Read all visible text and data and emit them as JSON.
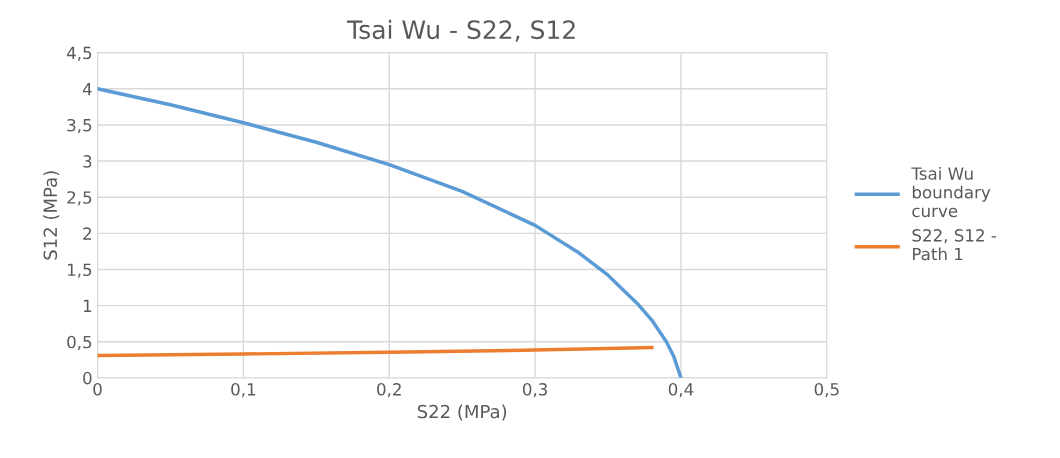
{
  "chart_data": {
    "type": "line",
    "title": "Tsai Wu - S22, S12",
    "xlabel": "S22 (MPa)",
    "ylabel": "S12 (MPa)",
    "xlim": [
      0,
      0.5
    ],
    "xticks": [
      0,
      {
        "value": 0.1,
        "label": "0,1"
      },
      {
        "value": 0.2,
        "label": "0,2"
      },
      {
        "value": 0.3,
        "label": "0,3"
      },
      {
        "value": 0.4,
        "label": "0,4"
      },
      {
        "value": 0.5,
        "label": "0,5"
      }
    ],
    "ylim": [
      0,
      4.5
    ],
    "yticks": [
      0,
      {
        "value": 0.5,
        "label": "0,5"
      },
      1,
      {
        "value": 1.5,
        "label": "1,5"
      },
      2,
      {
        "value": 2.5,
        "label": "2,5"
      },
      3,
      {
        "value": 3.5,
        "label": "3,5"
      },
      4,
      {
        "value": 4.5,
        "label": "4,5"
      }
    ],
    "grid": true,
    "legend": "right",
    "marker": "none",
    "line_style": "solid",
    "series": [
      {
        "name": "Tsai Wu boundary curve",
        "color": "#5b9bd5",
        "x": [
          0,
          0.05,
          0.1,
          0.15,
          0.2,
          0.25,
          0.3,
          0.33,
          0.35,
          0.37,
          0.38,
          0.39,
          0.395,
          0.4
        ],
        "values": [
          4,
          3.78,
          3.53,
          3.26,
          2.95,
          2.58,
          2.11,
          1.73,
          1.42,
          1.03,
          0.8,
          0.5,
          0.3,
          0
        ]
      },
      {
        "name": "S22, S12 - Path 1",
        "color": "#ed7d31",
        "x": [
          0,
          0.1,
          0.2,
          0.3,
          0.38
        ],
        "values": [
          0.31,
          0.33,
          0.355,
          0.385,
          0.42
        ]
      }
    ]
  }
}
